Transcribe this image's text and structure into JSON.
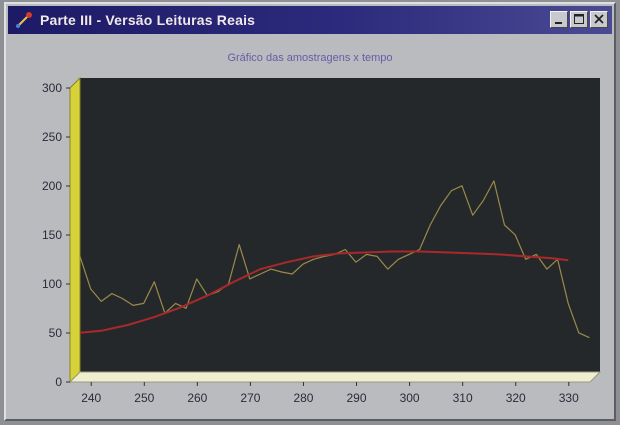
{
  "window": {
    "title": "Parte III - Versão Leituras Reais",
    "icons": [
      "app-icon",
      "minimize-icon",
      "maximize-icon",
      "close-icon"
    ]
  },
  "chart_data": {
    "type": "line",
    "title": "Gráfico das amostragens x tempo",
    "xlabel": "",
    "ylabel": "",
    "xlim": [
      236,
      334
    ],
    "ylim": [
      0,
      300
    ],
    "x_ticks": [
      "240",
      "250",
      "260",
      "270",
      "280",
      "290",
      "300",
      "310",
      "320",
      "330"
    ],
    "y_ticks": [
      "0",
      "50",
      "100",
      "150",
      "200",
      "250",
      "300"
    ],
    "grid": false,
    "style": "3d",
    "colors": {
      "plot_background": "#25282a",
      "side_wall": "#d8d23a",
      "floor": "#efefcf",
      "samples_line": "#9a8a4a",
      "trend_line": "#a8282c"
    },
    "series": [
      {
        "x": [
          236,
          238,
          240,
          242,
          244,
          246,
          248,
          250,
          252,
          254,
          256,
          258,
          260,
          262,
          264,
          266,
          268,
          270,
          272,
          274,
          276,
          278,
          280,
          282,
          284,
          286,
          288,
          290,
          292,
          294,
          296,
          298,
          300,
          302,
          304,
          306,
          308,
          310,
          312,
          314,
          316,
          318,
          320,
          322,
          324,
          326,
          328,
          330,
          332
        ],
        "y": [
          118,
          85,
          72,
          80,
          75,
          68,
          70,
          92,
          60,
          70,
          65,
          95,
          78,
          82,
          90,
          130,
          95,
          100,
          105,
          102,
          100,
          110,
          115,
          118,
          120,
          125,
          112,
          120,
          118,
          105,
          115,
          120,
          125,
          150,
          170,
          185,
          190,
          160,
          175,
          195,
          150,
          140,
          115,
          120,
          105,
          115,
          70,
          40,
          35
        ]
      },
      {
        "x": [
          236,
          240,
          245,
          250,
          255,
          260,
          265,
          270,
          275,
          280,
          285,
          290,
          295,
          300,
          305,
          310,
          315,
          320,
          325,
          328
        ],
        "y": [
          40,
          42,
          48,
          56,
          66,
          78,
          92,
          105,
          112,
          118,
          121,
          122,
          123,
          123,
          122,
          121,
          120,
          118,
          116,
          114
        ]
      }
    ]
  }
}
